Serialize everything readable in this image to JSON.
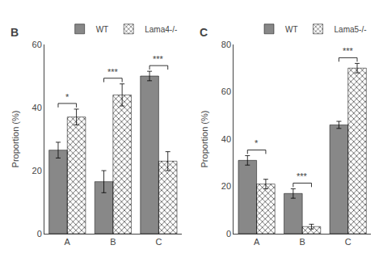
{
  "chart_data": [
    {
      "type": "bar",
      "title": "B",
      "categories": [
        "A",
        "B",
        "C"
      ],
      "series": [
        {
          "name": "WT",
          "color": "#888888",
          "values": [
            26.5,
            16.5,
            50.0
          ],
          "errors": [
            2.5,
            3.5,
            1.5
          ]
        },
        {
          "name": "Lama4-/-",
          "color": "#aaaaaa",
          "values": [
            37.0,
            44.0,
            23.0
          ],
          "errors": [
            2.5,
            3.5,
            3.0
          ]
        }
      ],
      "ylabel": "Proportion (%)",
      "ylim": [
        0,
        60
      ],
      "yticks": [
        0,
        20,
        40,
        60
      ],
      "grid": false,
      "legend": "upper right",
      "annotations": [
        {
          "category": "A",
          "text": "*"
        },
        {
          "category": "B",
          "text": "***"
        },
        {
          "category": "C",
          "text": "***"
        }
      ]
    },
    {
      "type": "bar",
      "title": "C",
      "categories": [
        "A",
        "B",
        "C"
      ],
      "series": [
        {
          "name": "WT",
          "color": "#888888",
          "values": [
            31.0,
            17.0,
            46.0
          ],
          "errors": [
            2.0,
            2.0,
            1.5
          ]
        },
        {
          "name": "Lama5-/-",
          "color": "#aaaaaa",
          "values": [
            21.0,
            3.0,
            70.0
          ],
          "errors": [
            2.0,
            1.0,
            2.0
          ]
        }
      ],
      "ylabel": "Proportion (%)",
      "ylim": [
        0,
        80
      ],
      "yticks": [
        0,
        20,
        40,
        60,
        80
      ],
      "grid": false,
      "legend": "upper right",
      "annotations": [
        {
          "category": "A",
          "text": "*"
        },
        {
          "category": "B",
          "text": "***"
        },
        {
          "category": "C",
          "text": "***"
        }
      ]
    }
  ]
}
